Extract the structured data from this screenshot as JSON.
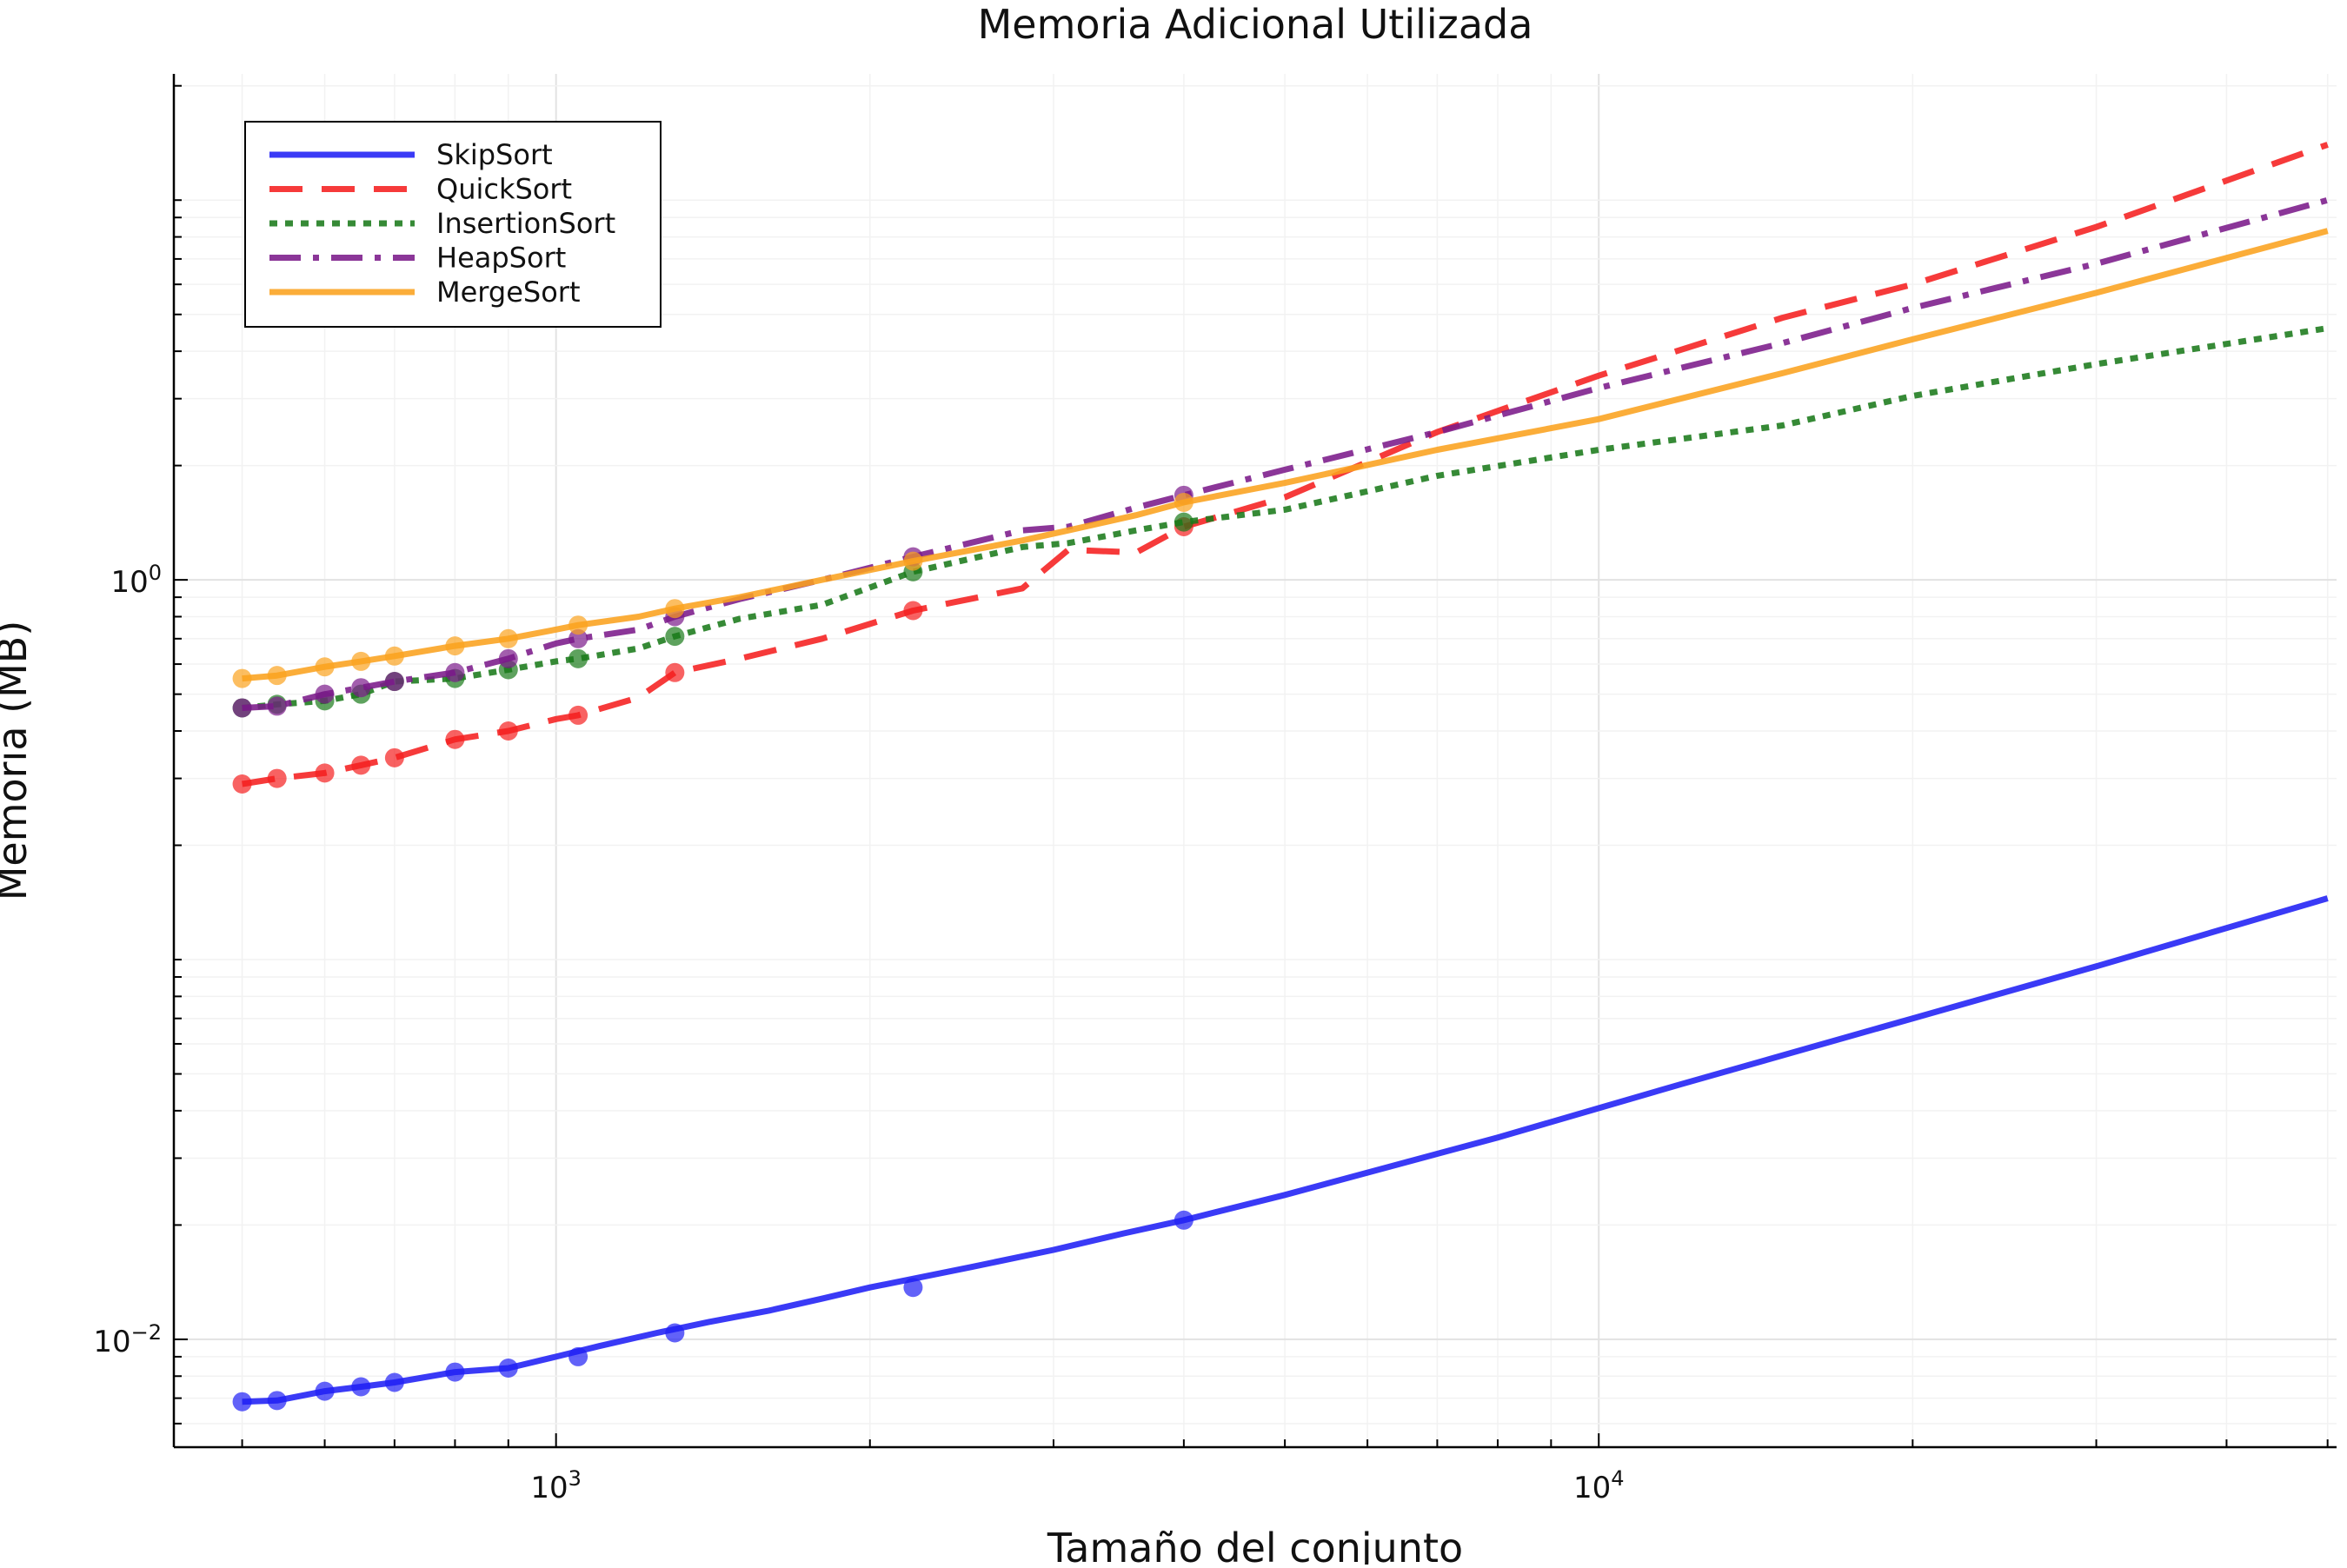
{
  "chart_data": {
    "type": "line",
    "title": "Memoria Adicional Utilizada",
    "xlabel": "Tamaño del conjunto",
    "ylabel": "Memoria (MB)",
    "x_scale": "log",
    "y_scale": "log",
    "xlim": [
      430,
      51000
    ],
    "ylim": [
      0.0052,
      21.5
    ],
    "grid": true,
    "legend_position": "top-left",
    "x_ticks": [
      {
        "value": 1000,
        "base": "10",
        "exp": "3"
      },
      {
        "value": 10000,
        "base": "10",
        "exp": "4"
      }
    ],
    "y_ticks": [
      {
        "value": 0.01,
        "base": "10",
        "exp": "−2"
      },
      {
        "value": 1,
        "base": "10",
        "exp": "0"
      }
    ],
    "series": [
      {
        "name": "SkipSort",
        "color": "#1f1ff5",
        "dash": "solid",
        "x": [
          500,
          540,
          600,
          650,
          700,
          800,
          900,
          1000,
          1100,
          1250,
          1400,
          1600,
          1800,
          2000,
          2500,
          3000,
          3500,
          4000,
          5000,
          8000,
          12000,
          20000,
          30000,
          50000
        ],
        "y": [
          0.00685,
          0.0069,
          0.0073,
          0.0075,
          0.0077,
          0.0082,
          0.0084,
          0.009,
          0.0096,
          0.0104,
          0.0111,
          0.0119,
          0.0128,
          0.0137,
          0.0155,
          0.0172,
          0.019,
          0.0206,
          0.024,
          0.034,
          0.047,
          0.07,
          0.096,
          0.145
        ],
        "markers_x": [
          500,
          540,
          600,
          650,
          700,
          800,
          900,
          1050,
          1300,
          2200,
          4000
        ],
        "markers_y": [
          0.00685,
          0.0069,
          0.0073,
          0.0075,
          0.0077,
          0.0082,
          0.0084,
          0.009,
          0.0104,
          0.0137,
          0.0206
        ]
      },
      {
        "name": "QuickSort",
        "color": "#f51f1f",
        "dash": "long-dash",
        "x": [
          500,
          540,
          600,
          650,
          700,
          800,
          900,
          1000,
          1050,
          1200,
          1300,
          1500,
          1800,
          2200,
          2800,
          3100,
          3600,
          4000,
          5000,
          7000,
          10000,
          15000,
          20000,
          30000,
          50000
        ],
        "y": [
          0.29,
          0.3,
          0.31,
          0.325,
          0.34,
          0.38,
          0.4,
          0.43,
          0.44,
          0.49,
          0.57,
          0.62,
          0.7,
          0.83,
          0.95,
          1.2,
          1.18,
          1.38,
          1.65,
          2.45,
          3.45,
          4.9,
          6.0,
          8.5,
          14.0
        ],
        "markers_x": [
          500,
          540,
          600,
          650,
          700,
          800,
          900,
          1050,
          1300,
          2200,
          4000
        ],
        "markers_y": [
          0.29,
          0.3,
          0.31,
          0.325,
          0.34,
          0.38,
          0.4,
          0.44,
          0.57,
          0.83,
          1.38
        ]
      },
      {
        "name": "InsertionSort",
        "color": "#1a7a1a",
        "dash": "dotted",
        "x": [
          500,
          540,
          600,
          650,
          700,
          800,
          900,
          1000,
          1050,
          1200,
          1300,
          1500,
          1800,
          2200,
          2800,
          3100,
          3600,
          4000,
          5000,
          7000,
          10000,
          15000,
          20000,
          30000,
          50000
        ],
        "y": [
          0.46,
          0.47,
          0.48,
          0.5,
          0.54,
          0.55,
          0.58,
          0.61,
          0.62,
          0.66,
          0.71,
          0.79,
          0.86,
          1.05,
          1.22,
          1.25,
          1.35,
          1.42,
          1.53,
          1.88,
          2.2,
          2.55,
          3.05,
          3.7,
          4.6
        ],
        "markers_x": [
          500,
          540,
          600,
          650,
          700,
          800,
          900,
          1050,
          1300,
          2200,
          4000
        ],
        "markers_y": [
          0.46,
          0.47,
          0.48,
          0.5,
          0.54,
          0.55,
          0.58,
          0.62,
          0.71,
          1.05,
          1.42
        ]
      },
      {
        "name": "HeapSort",
        "color": "#7b1a8a",
        "dash": "dash-dot",
        "x": [
          500,
          540,
          600,
          650,
          700,
          800,
          900,
          1000,
          1050,
          1200,
          1300,
          1500,
          1800,
          2200,
          2800,
          3100,
          3600,
          4000,
          5000,
          7000,
          10000,
          15000,
          20000,
          30000,
          50000
        ],
        "y": [
          0.46,
          0.465,
          0.5,
          0.52,
          0.54,
          0.57,
          0.62,
          0.68,
          0.7,
          0.74,
          0.8,
          0.89,
          1.0,
          1.15,
          1.35,
          1.38,
          1.55,
          1.67,
          1.95,
          2.45,
          3.2,
          4.2,
          5.2,
          6.8,
          10.0
        ],
        "markers_x": [
          500,
          540,
          600,
          650,
          700,
          800,
          900,
          1050,
          1300,
          2200,
          4000
        ],
        "markers_y": [
          0.46,
          0.465,
          0.5,
          0.52,
          0.54,
          0.57,
          0.62,
          0.7,
          0.8,
          1.15,
          1.67
        ]
      },
      {
        "name": "MergeSort",
        "color": "#fba21e",
        "dash": "solid",
        "x": [
          500,
          540,
          600,
          650,
          700,
          800,
          900,
          1000,
          1050,
          1200,
          1300,
          1500,
          1800,
          2200,
          2800,
          3100,
          3600,
          4000,
          5000,
          7000,
          10000,
          15000,
          20000,
          30000,
          50000
        ],
        "y": [
          0.55,
          0.56,
          0.59,
          0.61,
          0.63,
          0.67,
          0.7,
          0.74,
          0.76,
          0.8,
          0.84,
          0.9,
          1.0,
          1.12,
          1.27,
          1.35,
          1.48,
          1.6,
          1.8,
          2.2,
          2.65,
          3.5,
          4.3,
          5.7,
          8.3
        ],
        "markers_x": [
          500,
          540,
          600,
          650,
          700,
          800,
          900,
          1050,
          1300,
          2200,
          4000
        ],
        "markers_y": [
          0.55,
          0.56,
          0.59,
          0.61,
          0.63,
          0.67,
          0.7,
          0.76,
          0.84,
          1.12,
          1.6
        ]
      }
    ]
  }
}
